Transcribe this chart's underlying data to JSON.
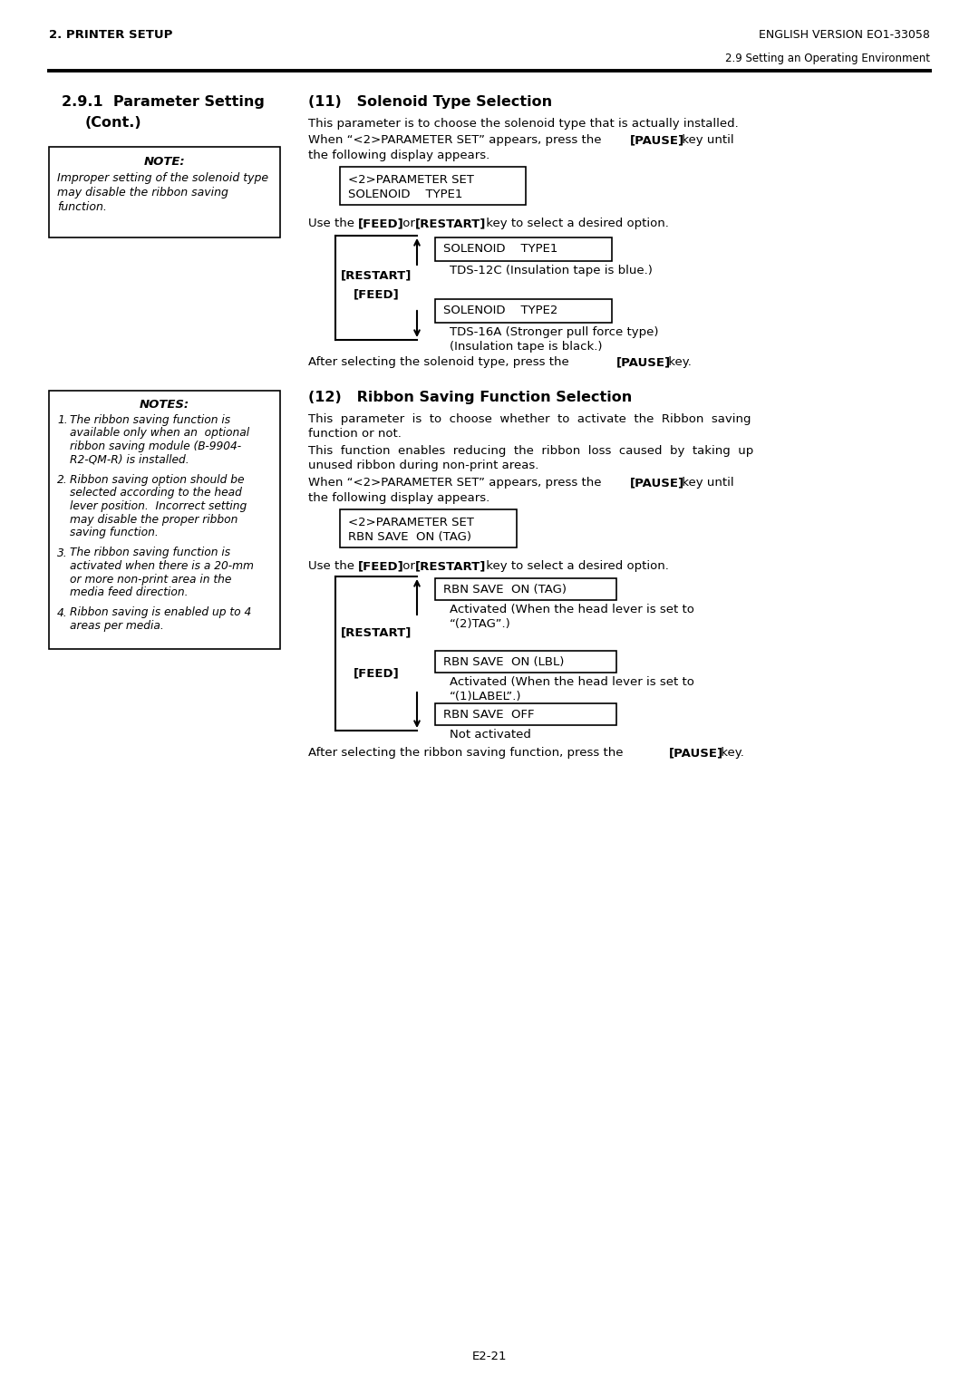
{
  "page_title_left": "2. PRINTER SETUP",
  "page_title_right": "ENGLISH VERSION EO1-33058",
  "page_subtitle_right": "2.9 Setting an Operating Environment",
  "note_title": "NOTE:",
  "note_body_line1": "Improper setting of the solenoid type",
  "note_body_line2": "may disable the ribbon saving",
  "note_body_line3": "function.",
  "sec11_title": "(11)   Solenoid Type Selection",
  "sec12_title": "(12)   Ribbon Saving Function Selection",
  "page_number": "E2-21",
  "bg_color": "#ffffff"
}
